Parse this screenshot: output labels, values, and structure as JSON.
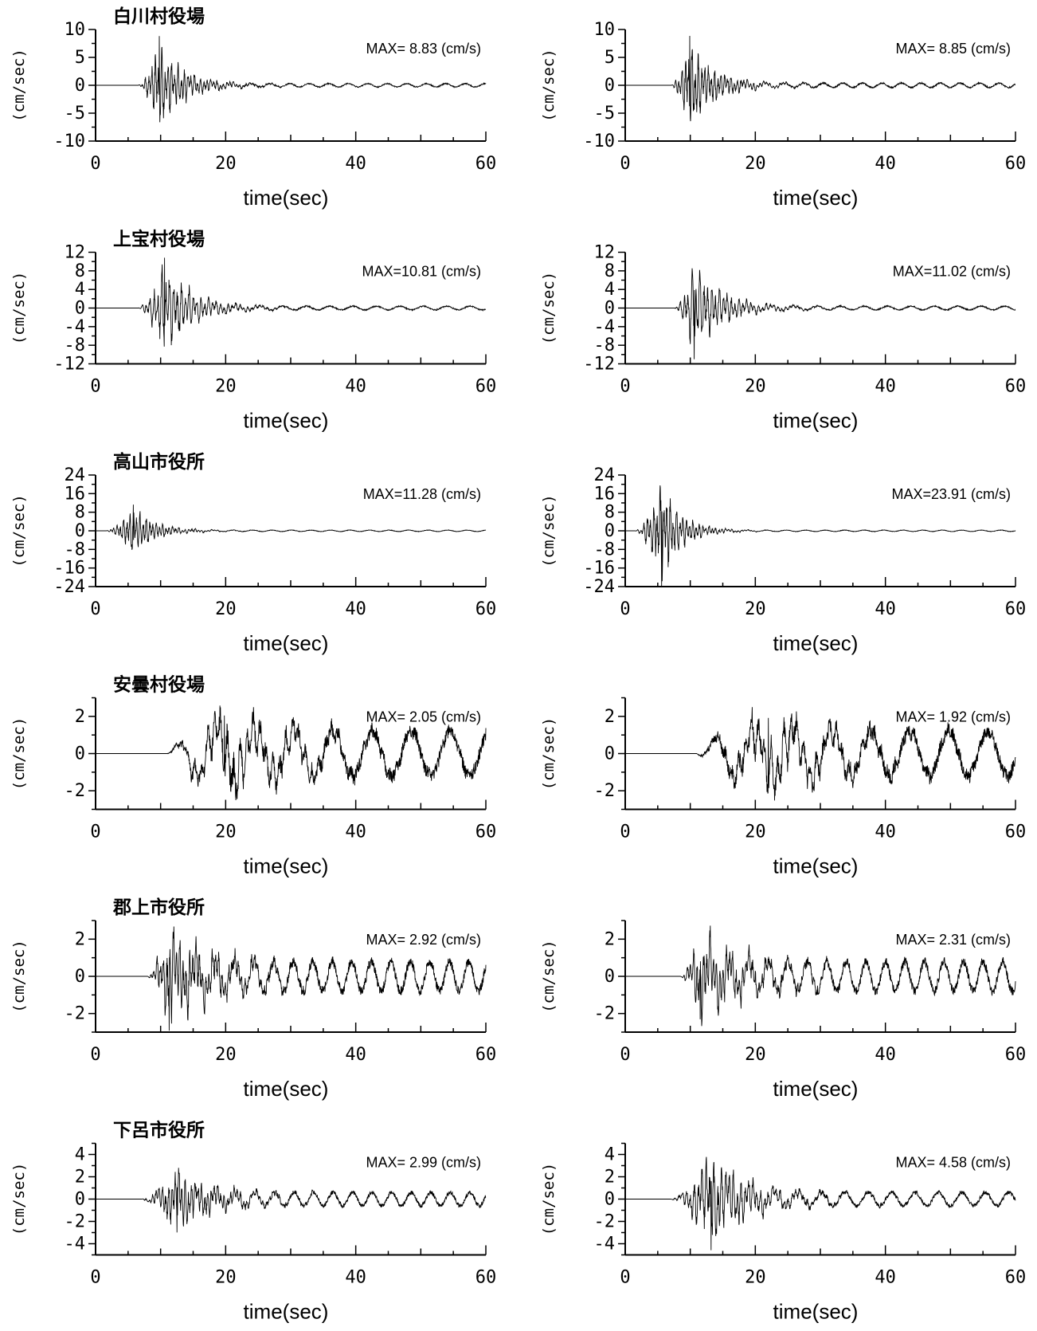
{
  "chart_data": [
    {
      "type": "line",
      "station": "白川村役場",
      "max_label": "MAX= 8.83 (cm/s)",
      "ylabel": "(cm/sec)",
      "xlabel": "time(sec)",
      "xlim": [
        0,
        60
      ],
      "ylim": [
        -10,
        10
      ],
      "xticks": [
        0,
        20,
        40,
        60
      ],
      "yticks": [
        -10,
        -5,
        0,
        5,
        10
      ],
      "peak": 8.83,
      "onset": 6.5,
      "peak_time": 9.8,
      "decay": 4.0,
      "period": 0.5,
      "coda": 0.6,
      "neg": false,
      "seed": 11
    },
    {
      "type": "line",
      "station": "",
      "max_label": "MAX= 8.85 (cm/s)",
      "ylabel": "(cm/sec)",
      "xlabel": "time(sec)",
      "xlim": [
        0,
        60
      ],
      "ylim": [
        -10,
        10
      ],
      "xticks": [
        0,
        20,
        40,
        60
      ],
      "yticks": [
        -10,
        -5,
        0,
        5,
        10
      ],
      "peak": 8.85,
      "onset": 7.0,
      "peak_time": 9.9,
      "decay": 4.0,
      "period": 0.5,
      "coda": 0.8,
      "neg": false,
      "seed": 12
    },
    {
      "type": "line",
      "station": "上宝村役場",
      "max_label": "MAX=10.81 (cm/s)",
      "ylabel": "(cm/sec)",
      "xlabel": "time(sec)",
      "xlim": [
        0,
        60
      ],
      "ylim": [
        -12,
        12
      ],
      "xticks": [
        0,
        20,
        40,
        60
      ],
      "yticks": [
        -12,
        -8,
        -4,
        0,
        4,
        8,
        12
      ],
      "peak": 10.81,
      "onset": 6.5,
      "peak_time": 10.6,
      "decay": 4.5,
      "period": 0.6,
      "coda": 0.8,
      "neg": false,
      "seed": 21
    },
    {
      "type": "line",
      "station": "",
      "max_label": "MAX=11.02 (cm/s)",
      "ylabel": "(cm/sec)",
      "xlabel": "time(sec)",
      "xlim": [
        0,
        60
      ],
      "ylim": [
        -12,
        12
      ],
      "xticks": [
        0,
        20,
        40,
        60
      ],
      "yticks": [
        -12,
        -8,
        -4,
        0,
        4,
        8,
        12
      ],
      "peak": 11.02,
      "onset": 7.5,
      "peak_time": 10.6,
      "decay": 4.5,
      "period": 0.6,
      "coda": 0.8,
      "neg": true,
      "seed": 22
    },
    {
      "type": "line",
      "station": "高山市役所",
      "max_label": "MAX=11.28 (cm/s)",
      "ylabel": "(cm/sec)",
      "xlabel": "time(sec)",
      "xlim": [
        0,
        60
      ],
      "ylim": [
        -24,
        24
      ],
      "xticks": [
        0,
        20,
        40,
        60
      ],
      "yticks": [
        -24,
        -16,
        -8,
        0,
        8,
        16,
        24
      ],
      "peak": 11.28,
      "onset": 1.5,
      "peak_time": 5.8,
      "decay": 3.5,
      "period": 0.5,
      "coda": 0.6,
      "neg": false,
      "seed": 31
    },
    {
      "type": "line",
      "station": "",
      "max_label": "MAX=23.91 (cm/s)",
      "ylabel": "(cm/sec)",
      "xlabel": "time(sec)",
      "xlim": [
        0,
        60
      ],
      "ylim": [
        -24,
        24
      ],
      "xticks": [
        0,
        20,
        40,
        60
      ],
      "yticks": [
        -24,
        -16,
        -8,
        0,
        8,
        16,
        24
      ],
      "peak": 23.91,
      "onset": 1.5,
      "peak_time": 5.6,
      "decay": 3.0,
      "period": 0.5,
      "coda": 0.6,
      "neg": true,
      "seed": 32
    },
    {
      "type": "line",
      "station": "安曇村役場",
      "max_label": "MAX= 2.05 (cm/s)",
      "ylabel": "(cm/sec)",
      "xlabel": "time(sec)",
      "xlim": [
        0,
        60
      ],
      "ylim": [
        -3,
        3
      ],
      "xticks": [
        0,
        20,
        40,
        60
      ],
      "yticks": [
        -2,
        0,
        2
      ],
      "peak": 2.05,
      "onset": 11.0,
      "peak_time": 19.8,
      "decay": 12.0,
      "period": 1.0,
      "coda": 2.4,
      "neg": false,
      "seed": 41
    },
    {
      "type": "line",
      "station": "",
      "max_label": "MAX= 1.92 (cm/s)",
      "ylabel": "(cm/sec)",
      "xlabel": "time(sec)",
      "xlim": [
        0,
        60
      ],
      "ylim": [
        -3,
        3
      ],
      "xticks": [
        0,
        20,
        40,
        60
      ],
      "yticks": [
        -2,
        0,
        2
      ],
      "peak": 1.92,
      "onset": 11.0,
      "peak_time": 22.0,
      "decay": 12.0,
      "period": 1.0,
      "coda": 2.4,
      "neg": false,
      "seed": 42
    },
    {
      "type": "line",
      "station": "郡上市役所",
      "max_label": "MAX= 2.92 (cm/s)",
      "ylabel": "(cm/sec)",
      "xlabel": "time(sec)",
      "xlim": [
        0,
        60
      ],
      "ylim": [
        -3,
        3
      ],
      "xticks": [
        0,
        20,
        40,
        60
      ],
      "yticks": [
        -2,
        0,
        2
      ],
      "peak": 2.92,
      "onset": 8.0,
      "peak_time": 11.3,
      "decay": 7.0,
      "period": 0.5,
      "coda": 1.6,
      "neg": true,
      "seed": 51
    },
    {
      "type": "line",
      "station": "",
      "max_label": "MAX= 2.31 (cm/s)",
      "ylabel": "(cm/sec)",
      "xlabel": "time(sec)",
      "xlim": [
        0,
        60
      ],
      "ylim": [
        -3,
        3
      ],
      "xticks": [
        0,
        20,
        40,
        60
      ],
      "yticks": [
        -2,
        0,
        2
      ],
      "peak": 2.31,
      "onset": 8.5,
      "peak_time": 11.5,
      "decay": 7.0,
      "period": 0.5,
      "coda": 1.6,
      "neg": true,
      "seed": 52
    },
    {
      "type": "line",
      "station": "下呂市役所",
      "max_label": "MAX= 2.99 (cm/s)",
      "ylabel": "(cm/sec)",
      "xlabel": "time(sec)",
      "xlim": [
        0,
        60
      ],
      "ylim": [
        -5,
        5
      ],
      "xticks": [
        0,
        20,
        40,
        60
      ],
      "yticks": [
        -4,
        -2,
        0,
        2,
        4
      ],
      "peak": 2.99,
      "onset": 7.0,
      "peak_time": 12.5,
      "decay": 6.0,
      "period": 0.5,
      "coda": 1.2,
      "neg": true,
      "seed": 61
    },
    {
      "type": "line",
      "station": "",
      "max_label": "MAX= 4.58 (cm/s)",
      "ylabel": "(cm/sec)",
      "xlabel": "time(sec)",
      "xlim": [
        0,
        60
      ],
      "ylim": [
        -5,
        5
      ],
      "xticks": [
        0,
        20,
        40,
        60
      ],
      "yticks": [
        -4,
        -2,
        0,
        2,
        4
      ],
      "peak": 4.58,
      "onset": 7.0,
      "peak_time": 13.2,
      "decay": 6.0,
      "period": 0.6,
      "coda": 1.2,
      "neg": true,
      "seed": 62
    }
  ],
  "colors": {
    "trace": "#000000",
    "axis": "#000000",
    "background": "#ffffff"
  }
}
